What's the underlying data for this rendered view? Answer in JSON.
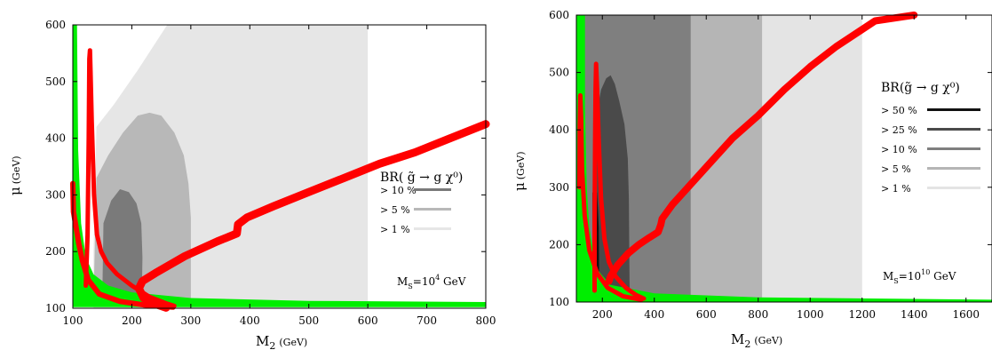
{
  "chart_data": [
    {
      "type": "area",
      "xlabel": "M",
      "xlabel_sub": "2",
      "xlabel_unit": "(GeV)",
      "ylabel": "μ",
      "ylabel_unit": "(GeV)",
      "xlim": [
        100,
        800
      ],
      "ylim": [
        100,
        600
      ],
      "xticks": [
        "100",
        "200",
        "300",
        "400",
        "500",
        "600",
        "700",
        "800"
      ],
      "yticks": [
        "100",
        "200",
        "300",
        "400",
        "500",
        "600"
      ],
      "legend_title": "BR( g̃ → g χ⁰)",
      "legend_position": "right",
      "annotation": "MS=10⁴ GeV",
      "annotation_parts": {
        "m": "M",
        "sub": "S",
        "eq": "=10",
        "sup": "4",
        "unit": " GeV"
      },
      "regions": [
        {
          "name": "> 1 %",
          "color": "#e6e6e6",
          "polygon": [
            [
              135,
              200
            ],
            [
              140,
              420
            ],
            [
              170,
              460
            ],
            [
              210,
              520
            ],
            [
              260,
              600
            ],
            [
              600,
              600
            ],
            [
              600,
              100
            ],
            [
              135,
              100
            ]
          ]
        },
        {
          "name": "> 5 %",
          "color": "#b8b8b8",
          "polygon": [
            [
              135,
              110
            ],
            [
              140,
              330
            ],
            [
              160,
              370
            ],
            [
              185,
              410
            ],
            [
              210,
              440
            ],
            [
              230,
              445
            ],
            [
              250,
              440
            ],
            [
              272,
              410
            ],
            [
              288,
              370
            ],
            [
              296,
              320
            ],
            [
              300,
              260
            ],
            [
              300,
              110
            ]
          ]
        },
        {
          "name": "> 10 %",
          "color": "#7a7a7a",
          "polygon": [
            [
              150,
              120
            ],
            [
              152,
              250
            ],
            [
              165,
              290
            ],
            [
              180,
              310
            ],
            [
              195,
              305
            ],
            [
              208,
              285
            ],
            [
              216,
              250
            ],
            [
              218,
              190
            ],
            [
              217,
              120
            ]
          ]
        }
      ],
      "boundary_green": {
        "color": "#00ee00",
        "polygon": [
          [
            100,
            600
          ],
          [
            107,
            600
          ],
          [
            109,
            380
          ],
          [
            114,
            250
          ],
          [
            122,
            190
          ],
          [
            135,
            160
          ],
          [
            160,
            140
          ],
          [
            200,
            128
          ],
          [
            300,
            118
          ],
          [
            500,
            113
          ],
          [
            800,
            111
          ],
          [
            800,
            102
          ],
          [
            100,
            102
          ]
        ]
      },
      "curves_red": [
        {
          "color": "#ff0000",
          "width": 6,
          "points": [
            [
              100,
              320
            ],
            [
              101,
              270
            ],
            [
              106,
              240
            ],
            [
              110,
              215
            ],
            [
              116,
              185
            ],
            [
              126,
              150
            ],
            [
              145,
              125
            ],
            [
              180,
              112
            ],
            [
              220,
              106
            ],
            [
              255,
              103
            ],
            [
              270,
              102
            ]
          ]
        },
        {
          "color": "#ff0000",
          "width": 5,
          "points": [
            [
              122,
              140
            ],
            [
              125,
              230
            ],
            [
              127,
              400
            ],
            [
              128,
              540
            ],
            [
              129,
              555
            ],
            [
              130,
              520
            ],
            [
              132,
              430
            ],
            [
              136,
              300
            ],
            [
              141,
              230
            ],
            [
              148,
              200
            ],
            [
              158,
              180
            ],
            [
              175,
              160
            ],
            [
              200,
              140
            ],
            [
              230,
              120
            ],
            [
              260,
              108
            ],
            [
              272,
              104
            ]
          ]
        },
        {
          "color": "#ff0000",
          "width": 9,
          "points": [
            [
              258,
              101
            ],
            [
              238,
              108
            ],
            [
              220,
              118
            ],
            [
              212,
              135
            ],
            [
              218,
              148
            ],
            [
              240,
              162
            ],
            [
              290,
              192
            ],
            [
              345,
              218
            ],
            [
              378,
              232
            ],
            [
              380,
              248
            ],
            [
              395,
              260
            ],
            [
              440,
              280
            ],
            [
              500,
              305
            ],
            [
              560,
              330
            ],
            [
              620,
              355
            ],
            [
              680,
              375
            ],
            [
              740,
              400
            ],
            [
              800,
              425
            ]
          ]
        }
      ]
    },
    {
      "type": "area",
      "xlabel": "M",
      "xlabel_sub": "2",
      "xlabel_unit": "(GeV)",
      "ylabel": "μ",
      "ylabel_unit": "(GeV)",
      "xlim": [
        100,
        1700
      ],
      "ylim": [
        100,
        600
      ],
      "xticks": [
        "200",
        "400",
        "600",
        "800",
        "1000",
        "1200",
        "1400",
        "1600"
      ],
      "yticks": [
        "100",
        "200",
        "300",
        "400",
        "500",
        "600"
      ],
      "legend_title": "BR(g̃ → g χ⁰)",
      "legend_position": "right",
      "annotation": "MS=10¹⁰ GeV",
      "annotation_parts": {
        "m": "M",
        "sub": "S",
        "eq": "=10",
        "sup": "10",
        "unit": " GeV"
      },
      "regions": [
        {
          "name": "> 1 %",
          "color": "#e4e4e4",
          "polygon": [
            [
              120,
              100
            ],
            [
              120,
              600
            ],
            [
              1200,
              600
            ],
            [
              1200,
              100
            ]
          ]
        },
        {
          "name": "> 5 %",
          "color": "#b5b5b5",
          "polygon": [
            [
              120,
              100
            ],
            [
              120,
              600
            ],
            [
              815,
              600
            ],
            [
              815,
              100
            ]
          ]
        },
        {
          "name": "> 10 %",
          "color": "#7f7f7f",
          "polygon": [
            [
              120,
              100
            ],
            [
              120,
              600
            ],
            [
              540,
              600
            ],
            [
              540,
              100
            ]
          ]
        },
        {
          "name": "> 25 %",
          "color": "#4a4a4a",
          "polygon": [
            [
              175,
              110
            ],
            [
              175,
              420
            ],
            [
              195,
              470
            ],
            [
              215,
              490
            ],
            [
              232,
              495
            ],
            [
              248,
              480
            ],
            [
              265,
              450
            ],
            [
              285,
              410
            ],
            [
              298,
              350
            ],
            [
              302,
              280
            ],
            [
              305,
              110
            ]
          ]
        },
        {
          "name": "> 50 %",
          "color": "#111111",
          "polygon": [
            [
              162,
              130
            ],
            [
              162,
              290
            ],
            [
              170,
              300
            ],
            [
              180,
              290
            ],
            [
              186,
              230
            ],
            [
              188,
              130
            ]
          ]
        }
      ],
      "boundary_green": {
        "color": "#00ee00",
        "polygon": [
          [
            100,
            100
          ],
          [
            100,
            600
          ],
          [
            133,
            600
          ],
          [
            133,
            440
          ],
          [
            140,
            300
          ],
          [
            150,
            230
          ],
          [
            175,
            160
          ],
          [
            230,
            130
          ],
          [
            400,
            115
          ],
          [
            800,
            108
          ],
          [
            1700,
            104
          ],
          [
            1700,
            100
          ]
        ]
      },
      "curves_red": [
        {
          "color": "#ff0000",
          "width": 5,
          "points": [
            [
              112,
              300
            ],
            [
              113,
              410
            ],
            [
              115,
              460
            ],
            [
              118,
              420
            ],
            [
              122,
              330
            ],
            [
              132,
              250
            ],
            [
              150,
              190
            ],
            [
              180,
              150
            ],
            [
              220,
              125
            ],
            [
              280,
              110
            ],
            [
              350,
              104
            ]
          ]
        },
        {
          "color": "#ff0000",
          "width": 5,
          "points": [
            [
              170,
              120
            ],
            [
              170,
              230
            ],
            [
              172,
              380
            ],
            [
              174,
              470
            ],
            [
              176,
              515
            ],
            [
              180,
              470
            ],
            [
              186,
              380
            ],
            [
              195,
              280
            ],
            [
              208,
              210
            ],
            [
              225,
              170
            ],
            [
              250,
              145
            ],
            [
              290,
              125
            ],
            [
              330,
              112
            ],
            [
              360,
              106
            ]
          ]
        },
        {
          "color": "#ff0000",
          "width": 8,
          "points": [
            [
              225,
              136
            ],
            [
              232,
              145
            ],
            [
              260,
              165
            ],
            [
              300,
              185
            ],
            [
              340,
              200
            ],
            [
              380,
              212
            ],
            [
              415,
              222
            ],
            [
              425,
              235
            ],
            [
              430,
              245
            ],
            [
              470,
              270
            ],
            [
              540,
              305
            ],
            [
              620,
              345
            ],
            [
              700,
              385
            ],
            [
              800,
              425
            ],
            [
              900,
              470
            ],
            [
              1000,
              510
            ],
            [
              1100,
              545
            ],
            [
              1250,
              590
            ],
            [
              1400,
              612
            ]
          ]
        }
      ]
    }
  ]
}
